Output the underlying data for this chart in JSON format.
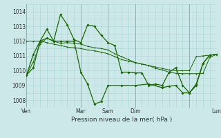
{
  "xlabel": "Pression niveau de la mer( hPa )",
  "bg_color": "#cce8e8",
  "grid_color": "#aad4d4",
  "line_color": "#1a6600",
  "xlim": [
    0,
    168
  ],
  "ylim": [
    1007.5,
    1014.5
  ],
  "yticks": [
    1008,
    1009,
    1010,
    1011,
    1012,
    1013,
    1014
  ],
  "xtick_positions": [
    0,
    48,
    72,
    96,
    144,
    168
  ],
  "xtick_labels": [
    "Ven",
    "Mar",
    "Sam",
    "Dim",
    "",
    "Lun"
  ],
  "vline_positions": [
    0,
    48,
    72,
    96,
    144,
    168
  ],
  "series1_x": [
    0,
    6,
    12,
    18,
    24,
    30,
    36,
    42,
    48,
    54,
    60,
    66,
    72,
    78,
    84,
    90,
    96,
    102,
    108,
    114,
    120,
    126,
    132,
    138,
    144,
    150,
    156,
    162,
    168
  ],
  "series1_y": [
    1009.7,
    1010.2,
    1012.0,
    1012.8,
    1012.0,
    1013.8,
    1013.1,
    1012.1,
    1011.9,
    1013.1,
    1013.0,
    1012.4,
    1011.9,
    1011.7,
    1009.9,
    1009.9,
    1009.85,
    1009.85,
    1009.0,
    1009.1,
    1009.0,
    1009.9,
    1010.2,
    1009.0,
    1008.5,
    1009.1,
    1010.5,
    1011.05,
    1011.1
  ],
  "series2_x": [
    0,
    6,
    12,
    18,
    24,
    30,
    36,
    42,
    48,
    54,
    60,
    66,
    72,
    78,
    84,
    90,
    96,
    102,
    108,
    114,
    120,
    126,
    132,
    138,
    144,
    150,
    156,
    162,
    168
  ],
  "series2_y": [
    1012.0,
    1012.0,
    1012.0,
    1011.9,
    1011.8,
    1011.7,
    1011.6,
    1011.55,
    1011.5,
    1011.4,
    1011.35,
    1011.25,
    1011.15,
    1010.95,
    1010.75,
    1010.65,
    1010.55,
    1010.45,
    1010.35,
    1010.25,
    1010.15,
    1010.05,
    1010.0,
    1010.0,
    1010.0,
    1010.95,
    1011.0,
    1011.05,
    1011.1
  ],
  "series3_x": [
    0,
    6,
    12,
    18,
    24,
    30,
    36,
    42,
    48,
    54,
    60,
    66,
    72,
    78,
    84,
    90,
    96,
    102,
    108,
    114,
    120,
    126,
    132,
    138,
    144,
    150,
    156,
    162,
    168
  ],
  "series3_y": [
    1009.7,
    1010.6,
    1011.8,
    1012.2,
    1012.0,
    1011.85,
    1011.9,
    1011.85,
    1011.8,
    1011.65,
    1011.55,
    1011.5,
    1011.4,
    1011.15,
    1010.95,
    1010.75,
    1010.55,
    1010.45,
    1010.35,
    1010.15,
    1010.05,
    1009.9,
    1009.82,
    1009.8,
    1009.8,
    1009.8,
    1009.82,
    1010.9,
    1011.1
  ],
  "series4_x": [
    0,
    6,
    12,
    18,
    24,
    30,
    36,
    42,
    48,
    54,
    60,
    66,
    72,
    84,
    96,
    108,
    120,
    126,
    132,
    138,
    144,
    150,
    156,
    162,
    168
  ],
  "series4_y": [
    1009.7,
    1011.1,
    1012.0,
    1012.2,
    1012.0,
    1012.0,
    1012.0,
    1012.0,
    1009.9,
    1009.1,
    1007.75,
    1007.9,
    1009.0,
    1009.0,
    1009.0,
    1009.1,
    1008.85,
    1008.95,
    1009.0,
    1008.5,
    1008.5,
    1009.0,
    1010.5,
    1011.05,
    1011.1
  ]
}
